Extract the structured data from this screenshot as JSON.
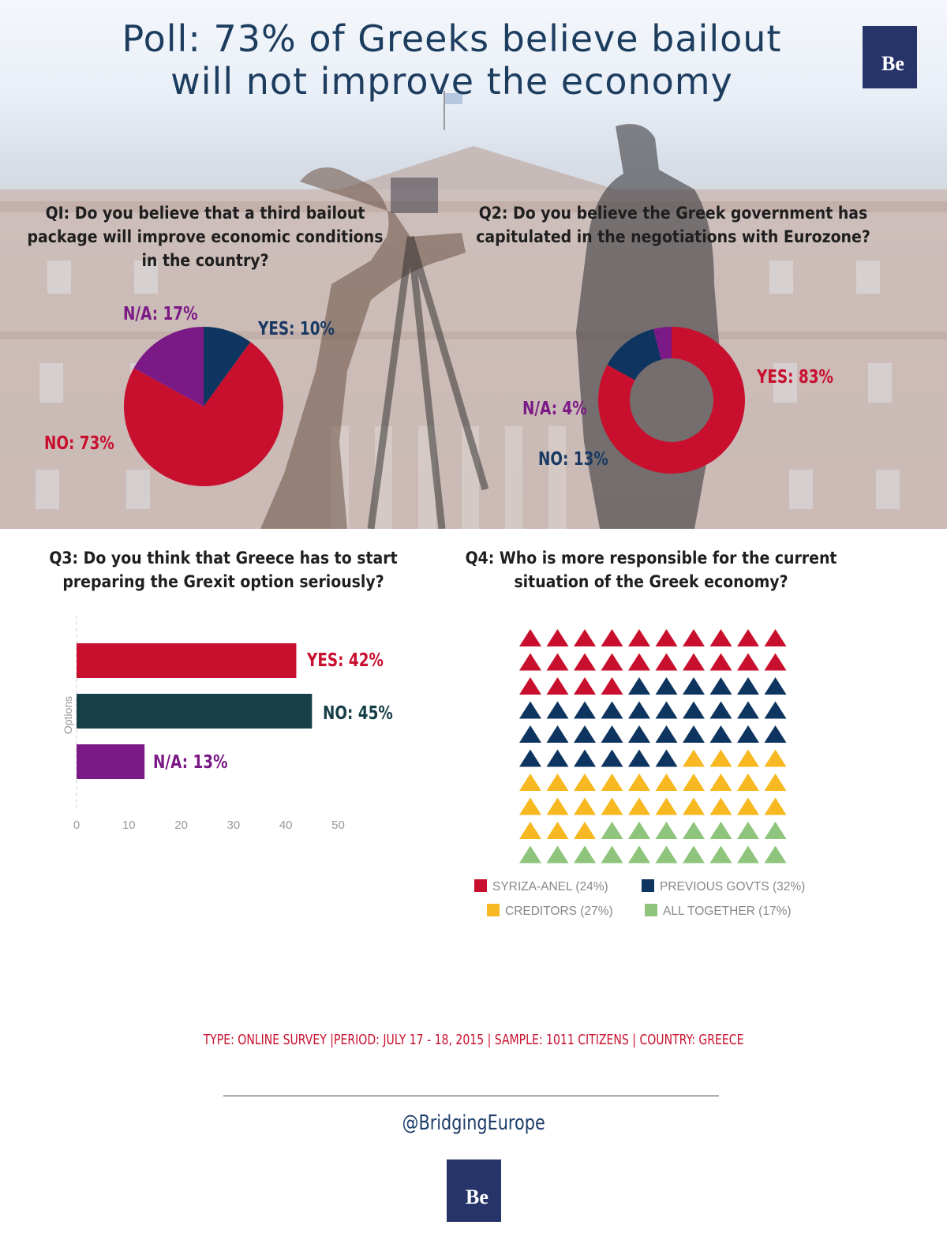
{
  "title_line1": "Poll: 73% of Greeks believe bailout",
  "title_line2": "will not improve the economy",
  "logo_text": "Be",
  "q1": {
    "title": [
      "QI: Do you believe that a third bailout",
      "package will improve economic conditions",
      "in the country?"
    ],
    "labels": {
      "yes": "YES: 10%",
      "no": "NO: 73%",
      "na": "N/A: 17%"
    }
  },
  "q2": {
    "title": [
      "Q2: Do you believe the Greek government has",
      "capitulated in the negotiations with Eurozone?"
    ],
    "labels": {
      "yes": "YES: 83%",
      "no": "NO: 13%",
      "na": "N/A: 4%"
    }
  },
  "q3": {
    "title": [
      "Q3: Do you think that Greece has to start",
      "preparing the Grexit option seriously?"
    ],
    "labels": {
      "yes": "YES: 42%",
      "no": "NO: 45%",
      "na": "N/A: 13%"
    },
    "ylabel": "Options"
  },
  "q4": {
    "title": [
      "Q4: Who is more responsible for the current",
      "situation of the Greek economy?"
    ],
    "legend": [
      "SYRIZA-ANEL (24%)",
      "PREVIOUS GOVTS (32%)",
      "CREDITORS (27%)",
      "ALL TOGETHER (17%)"
    ]
  },
  "footer": "TYPE: ONLINE SURVEY  |PERIOD: JULY 17 - 18, 2015 | SAMPLE: 1011 CITIZENS | COUNTRY: GREECE",
  "handle": "@BridgingEurope",
  "colors": {
    "red": "#c8102e",
    "navy": "#0e3560",
    "purple": "#7b1a86",
    "teal": "#173f48",
    "yellow": "#f7b821",
    "green": "#8ec47c"
  },
  "chart_data": [
    {
      "type": "pie",
      "title": "QI: Do you believe that a third bailout package will improve economic conditions in the country?",
      "categories": [
        "YES",
        "NO",
        "N/A"
      ],
      "values": [
        10,
        73,
        17
      ]
    },
    {
      "type": "pie",
      "title": "Q2: Do you believe the Greek government has capitulated in the negotiations with Eurozone?",
      "categories": [
        "YES",
        "NO",
        "N/A"
      ],
      "values": [
        83,
        13,
        4
      ]
    },
    {
      "type": "bar",
      "title": "Q3: Do you think that Greece has to start preparing the Grexit option seriously?",
      "categories": [
        "YES",
        "NO",
        "N/A"
      ],
      "values": [
        42,
        45,
        13
      ],
      "ylabel": "Options",
      "xlim": [
        0,
        50
      ],
      "xticks": [
        0,
        10,
        20,
        30,
        40,
        50
      ]
    },
    {
      "type": "pictogram",
      "title": "Q4: Who is more responsible for the current situation of the Greek economy?",
      "categories": [
        "SYRIZA-ANEL",
        "PREVIOUS GOVTS",
        "CREDITORS",
        "ALL TOGETHER"
      ],
      "values": [
        24,
        32,
        27,
        17
      ],
      "legend": "bottom"
    }
  ]
}
